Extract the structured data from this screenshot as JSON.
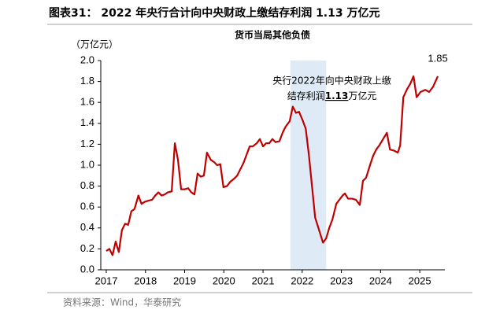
{
  "chart_data": {
    "type": "line",
    "title": "图表31： 2022 年央行合计向中央财政上缴结存利润 1.13 万亿元",
    "subtitle": "货币当局其他负债",
    "y_label": "（万亿元）",
    "source": "资料来源：Wind，华泰研究",
    "annotation": {
      "line1": "央行2022年向中央财政上缴",
      "line2_start": "结存利润",
      "line2_bold": "1.13",
      "line2_end": "万亿元"
    },
    "highlight": [
      2021.7,
      2022.61
    ],
    "highlight_color": "#deebf7",
    "annotation_color": "#1f3fcf",
    "color": "#c00000",
    "x": [
      2017.0,
      2017.08,
      2017.16,
      2017.24,
      2017.32,
      2017.4,
      2017.48,
      2017.56,
      2017.64,
      2017.72,
      2017.82,
      2017.9,
      2017.98,
      2018.07,
      2018.17,
      2018.25,
      2018.33,
      2018.41,
      2018.49,
      2018.57,
      2018.67,
      2018.75,
      2018.83,
      2018.91,
      2019.01,
      2019.09,
      2019.17,
      2019.25,
      2019.33,
      2019.41,
      2019.49,
      2019.57,
      2019.67,
      2019.75,
      2019.83,
      2019.91,
      2019.99,
      2020.08,
      2020.16,
      2020.26,
      2020.34,
      2020.42,
      2020.5,
      2020.58,
      2020.66,
      2020.74,
      2020.84,
      2020.92,
      2021.0,
      2021.08,
      2021.16,
      2021.24,
      2021.32,
      2021.42,
      2021.5,
      2021.58,
      2021.68,
      2021.76,
      2021.84,
      2021.92,
      2022.01,
      2022.09,
      2022.17,
      2022.33,
      2022.43,
      2022.53,
      2022.61,
      2022.69,
      2022.77,
      2022.87,
      2022.95,
      2023.03,
      2023.09,
      2023.17,
      2023.27,
      2023.37,
      2023.47,
      2023.55,
      2023.63,
      2023.73,
      2023.81,
      2023.89,
      2023.97,
      2024.16,
      2024.24,
      2024.34,
      2024.44,
      2024.5,
      2024.58,
      2024.68,
      2024.76,
      2024.84,
      2024.92,
      2025.02,
      2025.14,
      2025.24,
      2025.34,
      2025.46
    ],
    "values": [
      0.18,
      0.2,
      0.14,
      0.27,
      0.17,
      0.38,
      0.44,
      0.43,
      0.56,
      0.58,
      0.71,
      0.63,
      0.65,
      0.66,
      0.67,
      0.71,
      0.74,
      0.71,
      0.72,
      0.74,
      0.75,
      1.21,
      1.05,
      0.77,
      0.77,
      0.78,
      0.74,
      0.72,
      0.92,
      0.89,
      0.9,
      1.12,
      1.05,
      1.03,
      1.0,
      1.01,
      0.79,
      0.8,
      0.84,
      0.87,
      0.9,
      0.96,
      1.02,
      1.1,
      1.18,
      1.18,
      1.21,
      1.25,
      1.18,
      1.21,
      1.21,
      1.25,
      1.22,
      1.23,
      1.31,
      1.37,
      1.42,
      1.56,
      1.5,
      1.51,
      1.43,
      1.35,
      1.1,
      0.5,
      0.38,
      0.26,
      0.3,
      0.4,
      0.48,
      0.63,
      0.67,
      0.71,
      0.73,
      0.68,
      0.68,
      0.67,
      0.62,
      0.85,
      0.88,
      1.0,
      1.09,
      1.15,
      1.19,
      1.31,
      1.15,
      1.14,
      1.12,
      1.19,
      1.65,
      1.73,
      1.78,
      1.85,
      1.65,
      1.7,
      1.72,
      1.7,
      1.75,
      1.85
    ],
    "xlim": [
      2016.86,
      2025.64
    ],
    "xticks": [
      2017,
      2018,
      2019,
      2020,
      2021,
      2022,
      2023,
      2024,
      2025
    ],
    "ylim": [
      0,
      2
    ],
    "yticks": [
      {
        "value": 0,
        "label": "0.0"
      },
      {
        "value": 0.2,
        "label": "0.2"
      },
      {
        "value": 0.4,
        "label": "0.4"
      },
      {
        "value": 0.6,
        "label": "0.6"
      },
      {
        "value": 0.8,
        "label": "0.8"
      },
      {
        "value": 1,
        "label": "1.0"
      },
      {
        "value": 1.2,
        "label": "1.2"
      },
      {
        "value": 1.4,
        "label": "1.4"
      },
      {
        "value": 1.6,
        "label": "1.6"
      },
      {
        "value": 1.8,
        "label": "1.8"
      },
      {
        "value": 2,
        "label": "2.0"
      }
    ]
  }
}
